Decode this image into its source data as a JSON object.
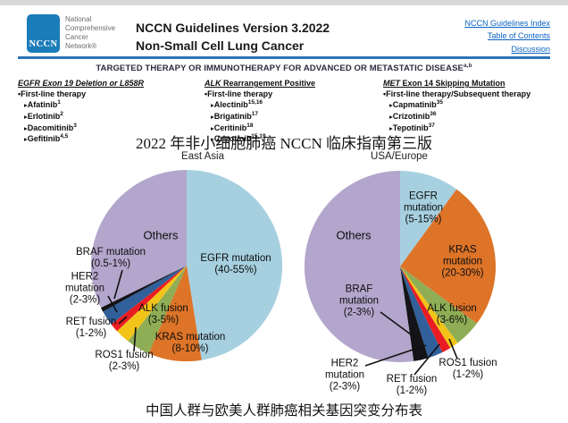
{
  "header": {
    "logo_text": "NCCN",
    "org_lines": [
      "National",
      "Comprehensive",
      "Cancer",
      "Network®"
    ],
    "title_line1": "NCCN Guidelines Version 3.2022",
    "title_line2": "Non-Small Cell Lung Cancer",
    "links": [
      "NCCN Guidelines Index",
      "Table of Contents",
      "Discussion"
    ]
  },
  "banner": {
    "text": "TARGETED THERAPY OR IMMUNOTHERAPY FOR ADVANCED OR METASTATIC DISEASE",
    "sup": "a,b"
  },
  "therapy_columns": [
    {
      "gene": "EGFR",
      "heading_rest": " Exon 19 Deletion or L858R",
      "subheading": "First-line therapy",
      "drugs": [
        {
          "name": "Afatinib",
          "sup": "1"
        },
        {
          "name": "Erlotinib",
          "sup": "2"
        },
        {
          "name": "Dacomitinib",
          "sup": "3"
        },
        {
          "name": "Gefitinib",
          "sup": "4,5"
        }
      ]
    },
    {
      "gene": "ALK",
      "heading_rest": " Rearrangement Positive",
      "subheading": "First-line therapy",
      "drugs": [
        {
          "name": "Alectinib",
          "sup": "15,16"
        },
        {
          "name": "Brigatinib",
          "sup": "17"
        },
        {
          "name": "Ceritinib",
          "sup": "18"
        },
        {
          "name": "Crizotinib",
          "sup": "15,19"
        }
      ]
    },
    {
      "gene": "MET",
      "heading_rest": " Exon 14 Skipping Mutation",
      "subheading": "First-line therapy/Subsequent therapy",
      "drugs": [
        {
          "name": "Capmatinib",
          "sup": "35"
        },
        {
          "name": "Crizotinib",
          "sup": "36"
        },
        {
          "name": "Tepotinib",
          "sup": "37"
        }
      ]
    }
  ],
  "captions": {
    "middle": "2022 年非小细胞肺癌 NCCN 临床指南第三版",
    "bottom": "中国人群与欧美人群肺癌相关基因突变分布表"
  },
  "chart_data": [
    {
      "type": "pie",
      "title": "East Asia",
      "start_angle_deg": -90,
      "direction": "clockwise",
      "segments": [
        {
          "id": "egfr",
          "label": "EGFR mutation",
          "range": "(40-55%)",
          "value": 47.5,
          "color": "#a6d0e0"
        },
        {
          "id": "kras",
          "label": "KRAS mutation",
          "range": "(8-10%)",
          "value": 9,
          "color": "#dd7428"
        },
        {
          "id": "alk",
          "label": "ALK fusion",
          "range": "(3-5%)",
          "value": 4,
          "color": "#8ead55"
        },
        {
          "id": "ros1",
          "label": "ROS1 fusion",
          "range": "(2-3%)",
          "value": 2.5,
          "color": "#f2c318"
        },
        {
          "id": "ret",
          "label": "RET fusion",
          "range": "(1-2%)",
          "value": 1.5,
          "color": "#ea1c23"
        },
        {
          "id": "her2",
          "label": "HER2 mutation",
          "range": "(2-3%)",
          "value": 2.5,
          "color": "#31609b"
        },
        {
          "id": "braf",
          "label": "BRAF mutation",
          "range": "(0.5-1%)",
          "value": 0.75,
          "color": "#141418"
        },
        {
          "id": "others",
          "label": "Others",
          "range": "",
          "value": 32.25,
          "color": "#b3a6cc"
        }
      ]
    },
    {
      "type": "pie",
      "title": "USA/Europe",
      "start_angle_deg": -90,
      "direction": "clockwise",
      "segments": [
        {
          "id": "egfr",
          "label": "EGFR mutation",
          "range": "(5-15%)",
          "value": 10,
          "color": "#a6d0e0"
        },
        {
          "id": "kras",
          "label": "KRAS mutation",
          "range": "(20-30%)",
          "value": 25,
          "color": "#dd7428"
        },
        {
          "id": "alk",
          "label": "ALK fusion",
          "range": "(3-6%)",
          "value": 4.5,
          "color": "#8ead55"
        },
        {
          "id": "ros1",
          "label": "ROS1 fusion",
          "range": "(1-2%)",
          "value": 1.5,
          "color": "#f2c318"
        },
        {
          "id": "ret",
          "label": "RET fusion",
          "range": "(1-2%)",
          "value": 1.5,
          "color": "#ea1c23"
        },
        {
          "id": "her2",
          "label": "HER2 mutation",
          "range": "(2-3%)",
          "value": 2.5,
          "color": "#31609b"
        },
        {
          "id": "braf",
          "label": "BRAF mutation",
          "range": "(2-3%)",
          "value": 2.5,
          "color": "#141418"
        },
        {
          "id": "others",
          "label": "Others",
          "range": "",
          "value": 52,
          "color": "#b3a6cc"
        }
      ]
    }
  ],
  "colors": {
    "logo_blue": "#1b7cba",
    "divider_blue": "#2e73b5",
    "link_blue": "#0b62c1"
  }
}
